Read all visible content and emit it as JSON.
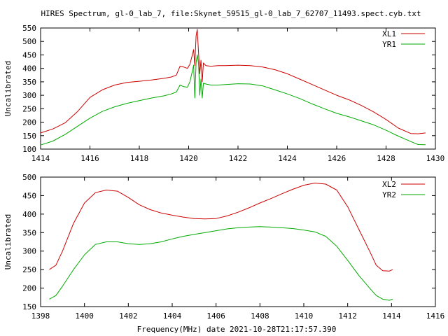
{
  "figure": {
    "title": "HIRES Spectrum, gl-0_lab_7, file:Skynet_59515_gl-0_lab_7_62707_11493.spect.cyb.txt",
    "xlabel": "Frequency(MHz) date 2021-10-28T21:17:57.390"
  },
  "colors": {
    "red": "#cc0000",
    "green": "#00aa00",
    "axis": "#000000"
  },
  "chart_data": [
    {
      "type": "line",
      "title": "HIRES Spectrum, gl-0_lab_7, file:Skynet_59515_gl-0_lab_7_62707_11493.spect.cyb.txt",
      "ylabel": "Uncalibrated",
      "xlim": [
        1414,
        1430
      ],
      "ylim": [
        100,
        550
      ],
      "xticks": [
        1414,
        1416,
        1418,
        1420,
        1422,
        1424,
        1426,
        1428,
        1430
      ],
      "yticks": [
        100,
        150,
        200,
        250,
        300,
        350,
        400,
        450,
        500,
        550
      ],
      "legend": "top-right",
      "grid": false,
      "series": [
        {
          "name": "XL1",
          "color": "#cc0000",
          "points": [
            [
              1414.0,
              160
            ],
            [
              1414.5,
              175
            ],
            [
              1415.0,
              198
            ],
            [
              1415.5,
              240
            ],
            [
              1416.0,
              292
            ],
            [
              1416.5,
              320
            ],
            [
              1417.0,
              338
            ],
            [
              1417.5,
              348
            ],
            [
              1418.0,
              352
            ],
            [
              1418.5,
              357
            ],
            [
              1419.0,
              363
            ],
            [
              1419.3,
              368
            ],
            [
              1419.5,
              375
            ],
            [
              1419.65,
              408
            ],
            [
              1419.8,
              405
            ],
            [
              1419.95,
              400
            ],
            [
              1420.05,
              415
            ],
            [
              1420.15,
              450
            ],
            [
              1420.2,
              470
            ],
            [
              1420.25,
              410
            ],
            [
              1420.3,
              520
            ],
            [
              1420.35,
              545
            ],
            [
              1420.4,
              460
            ],
            [
              1420.45,
              380
            ],
            [
              1420.5,
              430
            ],
            [
              1420.55,
              350
            ],
            [
              1420.6,
              420
            ],
            [
              1420.7,
              410
            ],
            [
              1420.9,
              408
            ],
            [
              1421.2,
              410
            ],
            [
              1421.5,
              410
            ],
            [
              1422.0,
              412
            ],
            [
              1422.5,
              410
            ],
            [
              1423.0,
              405
            ],
            [
              1423.5,
              395
            ],
            [
              1424.0,
              380
            ],
            [
              1424.5,
              360
            ],
            [
              1425.0,
              340
            ],
            [
              1425.5,
              320
            ],
            [
              1426.0,
              300
            ],
            [
              1426.5,
              283
            ],
            [
              1427.0,
              262
            ],
            [
              1427.5,
              238
            ],
            [
              1428.0,
              210
            ],
            [
              1428.5,
              178
            ],
            [
              1429.0,
              158
            ],
            [
              1429.3,
              157
            ],
            [
              1429.6,
              160
            ]
          ]
        },
        {
          "name": "YR1",
          "color": "#00aa00",
          "points": [
            [
              1414.0,
              115
            ],
            [
              1414.5,
              130
            ],
            [
              1415.0,
              155
            ],
            [
              1415.5,
              185
            ],
            [
              1416.0,
              215
            ],
            [
              1416.5,
              240
            ],
            [
              1417.0,
              257
            ],
            [
              1417.5,
              270
            ],
            [
              1418.0,
              280
            ],
            [
              1418.5,
              290
            ],
            [
              1419.0,
              298
            ],
            [
              1419.3,
              305
            ],
            [
              1419.5,
              312
            ],
            [
              1419.65,
              338
            ],
            [
              1419.8,
              332
            ],
            [
              1419.95,
              330
            ],
            [
              1420.05,
              350
            ],
            [
              1420.15,
              390
            ],
            [
              1420.2,
              412
            ],
            [
              1420.25,
              290
            ],
            [
              1420.3,
              420
            ],
            [
              1420.35,
              450
            ],
            [
              1420.4,
              420
            ],
            [
              1420.45,
              300
            ],
            [
              1420.5,
              360
            ],
            [
              1420.55,
              290
            ],
            [
              1420.6,
              345
            ],
            [
              1420.7,
              342
            ],
            [
              1420.9,
              338
            ],
            [
              1421.2,
              338
            ],
            [
              1421.5,
              340
            ],
            [
              1422.0,
              343
            ],
            [
              1422.5,
              342
            ],
            [
              1423.0,
              335
            ],
            [
              1423.5,
              320
            ],
            [
              1424.0,
              305
            ],
            [
              1424.5,
              288
            ],
            [
              1425.0,
              268
            ],
            [
              1425.5,
              250
            ],
            [
              1426.0,
              233
            ],
            [
              1426.5,
              220
            ],
            [
              1427.0,
              205
            ],
            [
              1427.5,
              190
            ],
            [
              1428.0,
              170
            ],
            [
              1428.5,
              148
            ],
            [
              1429.0,
              128
            ],
            [
              1429.3,
              117
            ],
            [
              1429.6,
              116
            ]
          ]
        }
      ]
    },
    {
      "type": "line",
      "ylabel": "Uncalibrated",
      "xlabel": "Frequency(MHz) date 2021-10-28T21:17:57.390",
      "xlim": [
        1398,
        1416
      ],
      "ylim": [
        150,
        500
      ],
      "xticks": [
        1398,
        1400,
        1402,
        1404,
        1406,
        1408,
        1410,
        1412,
        1414,
        1416
      ],
      "yticks": [
        150,
        200,
        250,
        300,
        350,
        400,
        450,
        500
      ],
      "legend": "top-right",
      "grid": false,
      "series": [
        {
          "name": "XL2",
          "color": "#cc0000",
          "points": [
            [
              1398.4,
              250
            ],
            [
              1398.7,
              262
            ],
            [
              1399.0,
              300
            ],
            [
              1399.5,
              375
            ],
            [
              1400.0,
              430
            ],
            [
              1400.5,
              458
            ],
            [
              1401.0,
              465
            ],
            [
              1401.5,
              462
            ],
            [
              1402.0,
              445
            ],
            [
              1402.5,
              425
            ],
            [
              1403.0,
              412
            ],
            [
              1403.5,
              403
            ],
            [
              1404.0,
              397
            ],
            [
              1404.5,
              392
            ],
            [
              1405.0,
              388
            ],
            [
              1405.5,
              387
            ],
            [
              1406.0,
              388
            ],
            [
              1406.5,
              395
            ],
            [
              1407.0,
              405
            ],
            [
              1407.5,
              417
            ],
            [
              1408.0,
              430
            ],
            [
              1408.5,
              442
            ],
            [
              1409.0,
              455
            ],
            [
              1409.5,
              467
            ],
            [
              1410.0,
              478
            ],
            [
              1410.5,
              484
            ],
            [
              1411.0,
              481
            ],
            [
              1411.5,
              465
            ],
            [
              1412.0,
              420
            ],
            [
              1412.5,
              360
            ],
            [
              1413.0,
              300
            ],
            [
              1413.3,
              262
            ],
            [
              1413.6,
              247
            ],
            [
              1413.9,
              246
            ],
            [
              1414.05,
              250
            ]
          ]
        },
        {
          "name": "YR2",
          "color": "#00aa00",
          "points": [
            [
              1398.4,
              170
            ],
            [
              1398.7,
              180
            ],
            [
              1399.0,
              205
            ],
            [
              1399.5,
              250
            ],
            [
              1400.0,
              290
            ],
            [
              1400.5,
              318
            ],
            [
              1401.0,
              325
            ],
            [
              1401.5,
              325
            ],
            [
              1402.0,
              320
            ],
            [
              1402.5,
              318
            ],
            [
              1403.0,
              320
            ],
            [
              1403.5,
              325
            ],
            [
              1404.0,
              333
            ],
            [
              1404.5,
              340
            ],
            [
              1405.0,
              345
            ],
            [
              1405.5,
              350
            ],
            [
              1406.0,
              355
            ],
            [
              1406.5,
              360
            ],
            [
              1407.0,
              363
            ],
            [
              1407.5,
              365
            ],
            [
              1408.0,
              366
            ],
            [
              1408.5,
              365
            ],
            [
              1409.0,
              363
            ],
            [
              1409.5,
              361
            ],
            [
              1410.0,
              357
            ],
            [
              1410.5,
              352
            ],
            [
              1411.0,
              340
            ],
            [
              1411.5,
              313
            ],
            [
              1412.0,
              275
            ],
            [
              1412.5,
              235
            ],
            [
              1413.0,
              200
            ],
            [
              1413.3,
              180
            ],
            [
              1413.6,
              170
            ],
            [
              1413.9,
              167
            ],
            [
              1414.05,
              170
            ]
          ]
        }
      ]
    }
  ]
}
